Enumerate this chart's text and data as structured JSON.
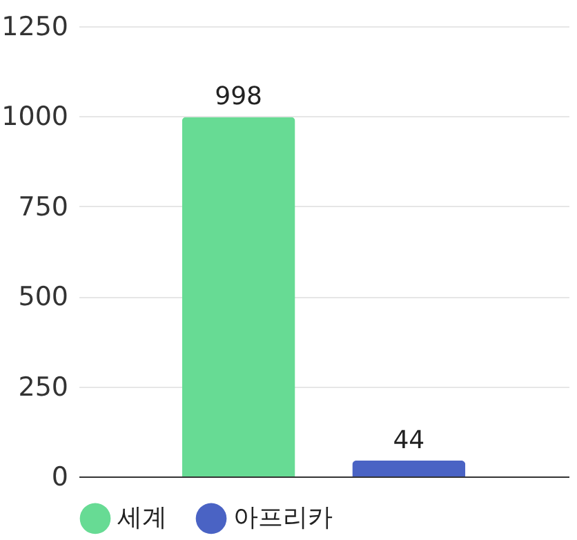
{
  "chart_data": {
    "type": "bar",
    "categories": [
      null
    ],
    "series": [
      {
        "name": "세계",
        "color": "#67db94",
        "values": [
          998
        ]
      },
      {
        "name": "아프리카",
        "color": "#4a63c4",
        "values": [
          44
        ]
      }
    ],
    "ylim": [
      0,
      1250
    ],
    "yticks": [
      0,
      250,
      500,
      750,
      1000,
      1250
    ],
    "grid": "y",
    "legend": "bottom",
    "data_labels": true,
    "tick_labels": "y"
  }
}
